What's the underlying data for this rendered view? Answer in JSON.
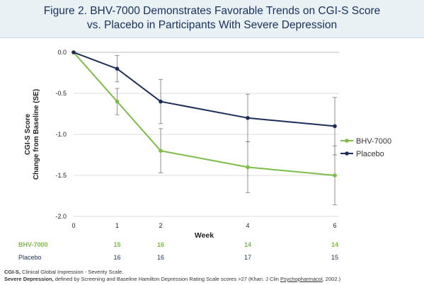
{
  "header": {
    "title_line1": "Figure 2. BHV-7000 Demonstrates Favorable Trends on CGI-S Score",
    "title_line2": "vs. Placebo in Participants With Severe Depression"
  },
  "chart_data": {
    "type": "line",
    "xlabel": "Week",
    "ylabel_line1": "CGI-S Score",
    "ylabel_line2": "Change from Baseline (SE)",
    "x_ticks": [
      0,
      1,
      2,
      4,
      6
    ],
    "y_ticks": [
      "0.0",
      "-0.5",
      "-1.0",
      "-1.5",
      "-2.0"
    ],
    "xlim": [
      0,
      6
    ],
    "ylim": [
      -2.0,
      0.0
    ],
    "legend_position": "right",
    "series": [
      {
        "name": "BHV-7000",
        "color": "#7dbb48",
        "x": [
          0,
          1,
          2,
          4,
          6
        ],
        "y": [
          0.0,
          -0.6,
          -1.2,
          -1.4,
          -1.5
        ],
        "error_low": [
          0.0,
          -0.76,
          -1.47,
          -1.71,
          -1.86
        ],
        "error_high": [
          0.0,
          -0.44,
          -0.93,
          -1.09,
          -1.14
        ]
      },
      {
        "name": "Placebo",
        "color": "#1b2d59",
        "x": [
          0,
          1,
          2,
          4,
          6
        ],
        "y": [
          0.0,
          -0.2,
          -0.6,
          -0.8,
          -0.9
        ],
        "error_low": [
          0.0,
          -0.36,
          -0.87,
          -1.09,
          -1.25
        ],
        "error_high": [
          0.0,
          -0.04,
          -0.33,
          -0.51,
          -0.55
        ]
      }
    ],
    "n_table": {
      "x": [
        1,
        2,
        4,
        6
      ],
      "rows": [
        {
          "label": "BHV-7000",
          "values": [
            "15",
            "16",
            "14",
            "14"
          ],
          "color": "#7dbb48",
          "bold": true
        },
        {
          "label": "Placebo",
          "values": [
            "16",
            "16",
            "17",
            "15"
          ],
          "color": "#1b2d59",
          "bold": false
        }
      ]
    }
  },
  "footer": {
    "line1_term": "CGI-S,",
    "line1_text": " Clinical Global Impression - Severity Scale.",
    "line2_term": "Severe Depression,",
    "line2_text_a": " defined by Screening and Baseline Hamilton Depression Rating Scale scores >27 (Khan. J Clin ",
    "line2_underlined": "Psychopharmacol",
    "line2_text_b": ", 2002.)"
  }
}
